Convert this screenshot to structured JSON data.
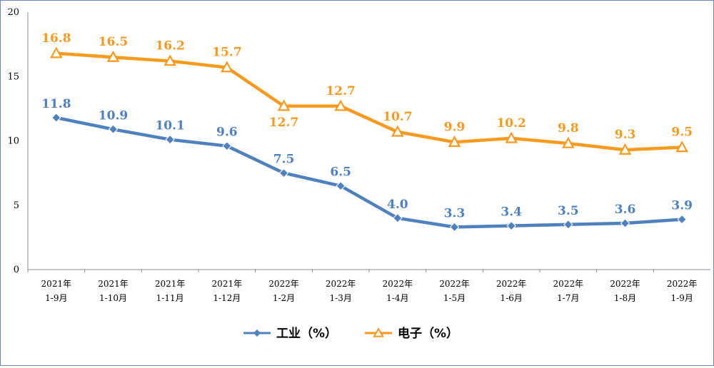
{
  "chart_data": {
    "type": "line",
    "categories": [
      [
        "2021年",
        "1-9月"
      ],
      [
        "2021年",
        "1-10月"
      ],
      [
        "2021年",
        "1-11月"
      ],
      [
        "2021年",
        "1-12月"
      ],
      [
        "2022年",
        "1-2月"
      ],
      [
        "2022年",
        "1-3月"
      ],
      [
        "2022年",
        "1-4月"
      ],
      [
        "2022年",
        "1-5月"
      ],
      [
        "2022年",
        "1-6月"
      ],
      [
        "2022年",
        "1-7月"
      ],
      [
        "2022年",
        "1-8月"
      ],
      [
        "2022年",
        "1-9月"
      ]
    ],
    "series": [
      {
        "name": "工业（%）",
        "color": "#4f81bd",
        "marker": "diamond",
        "values": [
          11.8,
          10.9,
          10.1,
          9.6,
          7.5,
          6.5,
          4.0,
          3.3,
          3.4,
          3.5,
          3.6,
          3.9
        ],
        "labels": [
          "11.8",
          "10.9",
          "10.1",
          "9.6",
          "7.5",
          "6.5",
          "4.0",
          "3.3",
          "3.4",
          "3.5",
          "3.6",
          "3.9"
        ]
      },
      {
        "name": "电子（%）",
        "color": "#f79a1e",
        "marker": "triangle",
        "values": [
          16.8,
          16.5,
          16.2,
          15.7,
          12.7,
          12.7,
          10.7,
          9.9,
          10.2,
          9.8,
          9.3,
          9.5
        ],
        "labels": [
          "16.8",
          "16.5",
          "16.2",
          "15.7",
          "12.7",
          "12.7",
          "10.7",
          "9.9",
          "10.2",
          "9.8",
          "9.3",
          "9.5"
        ]
      }
    ],
    "ylim": [
      0,
      20
    ],
    "yticks": [
      0,
      5,
      10,
      15,
      20
    ],
    "grid": false,
    "legend": "bottom-center"
  }
}
